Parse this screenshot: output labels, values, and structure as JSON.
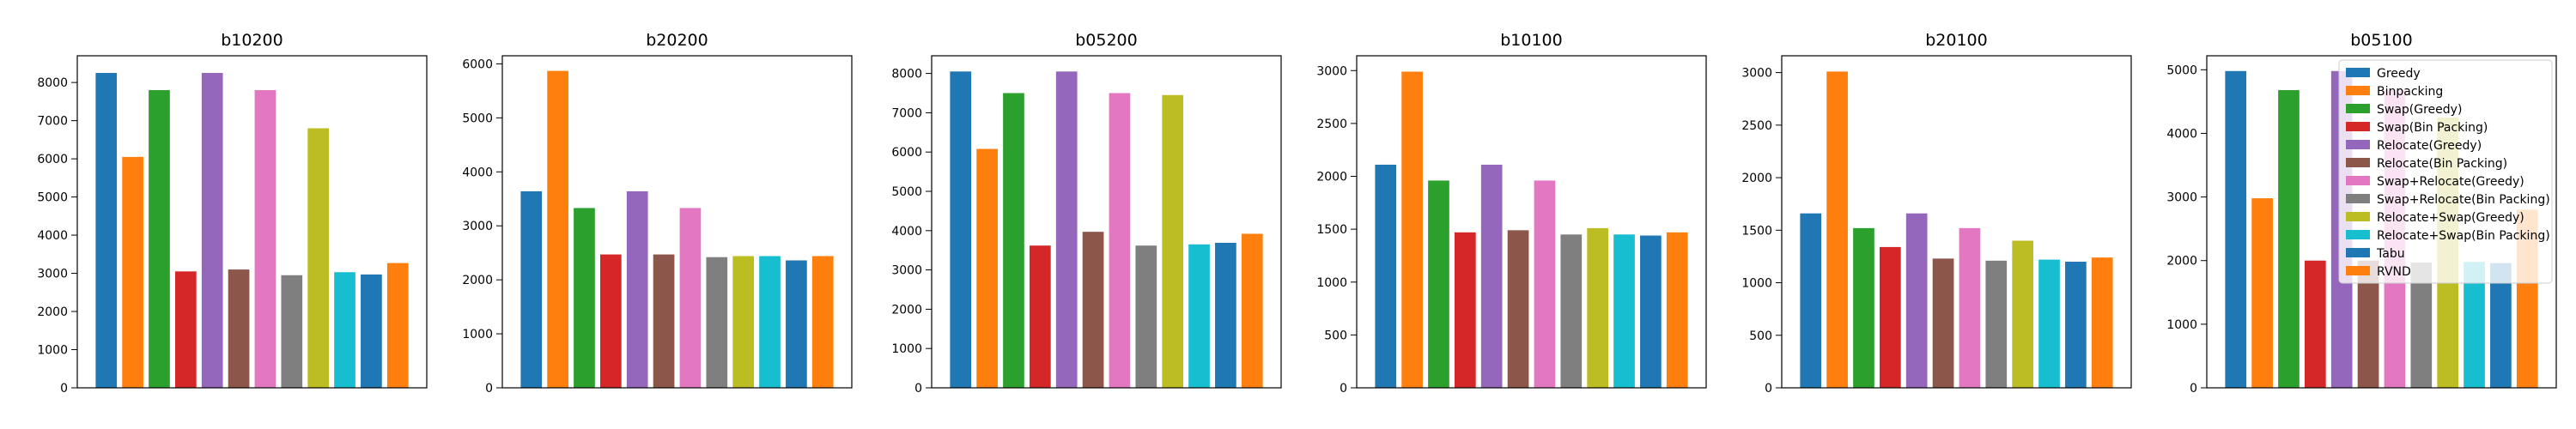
{
  "series_names": [
    "Greedy",
    "Binpacking",
    "Swap(Greedy)",
    "Swap(Bin Packing)",
    "Relocate(Greedy)",
    "Relocate(Bin Packing)",
    "Swap+Relocate(Greedy)",
    "Swap+Relocate(Bin Packing)",
    "Relocate+Swap(Greedy)",
    "Relocate+Swap(Bin Packing)",
    "Tabu",
    "RVND"
  ],
  "colors": [
    "#1f77b4",
    "#ff7f0e",
    "#2ca02c",
    "#d62728",
    "#9467bd",
    "#8c564b",
    "#e377c2",
    "#7f7f7f",
    "#bcbd22",
    "#17becf",
    "#1f77b4",
    "#ff7f0e"
  ],
  "chart_data": [
    {
      "type": "bar",
      "title": "b10200",
      "categories": [
        "Greedy",
        "Binpacking",
        "Swap(Greedy)",
        "Swap(Bin Packing)",
        "Relocate(Greedy)",
        "Relocate(Bin Packing)",
        "Swap+Relocate(Greedy)",
        "Swap+Relocate(Bin Packing)",
        "Relocate+Swap(Greedy)",
        "Relocate+Swap(Bin Packing)",
        "Tabu",
        "RVND"
      ],
      "values": [
        8250,
        6050,
        7800,
        3050,
        8250,
        3100,
        7800,
        2950,
        6800,
        3030,
        2970,
        3270
      ],
      "ylim": [
        0,
        8700
      ],
      "yticks": [
        0,
        1000,
        2000,
        3000,
        4000,
        5000,
        6000,
        7000,
        8000
      ],
      "xlabel": "",
      "ylabel": "",
      "legend": "none"
    },
    {
      "type": "bar",
      "title": "b20200",
      "categories": [
        "Greedy",
        "Binpacking",
        "Swap(Greedy)",
        "Swap(Bin Packing)",
        "Relocate(Greedy)",
        "Relocate(Bin Packing)",
        "Swap+Relocate(Greedy)",
        "Swap+Relocate(Bin Packing)",
        "Relocate+Swap(Greedy)",
        "Relocate+Swap(Bin Packing)",
        "Tabu",
        "RVND"
      ],
      "values": [
        3640,
        5870,
        3330,
        2470,
        3640,
        2470,
        3330,
        2420,
        2440,
        2440,
        2360,
        2440
      ],
      "ylim": [
        0,
        6150
      ],
      "yticks": [
        0,
        1000,
        2000,
        3000,
        4000,
        5000,
        6000
      ],
      "xlabel": "",
      "ylabel": "",
      "legend": "none"
    },
    {
      "type": "bar",
      "title": "b05200",
      "categories": [
        "Greedy",
        "Binpacking",
        "Swap(Greedy)",
        "Swap(Bin Packing)",
        "Relocate(Greedy)",
        "Relocate(Bin Packing)",
        "Swap+Relocate(Greedy)",
        "Swap+Relocate(Bin Packing)",
        "Relocate+Swap(Greedy)",
        "Relocate+Swap(Bin Packing)",
        "Tabu",
        "RVND"
      ],
      "values": [
        8050,
        6080,
        7500,
        3620,
        8050,
        3970,
        7500,
        3620,
        7450,
        3650,
        3690,
        3920
      ],
      "ylim": [
        0,
        8450
      ],
      "yticks": [
        0,
        1000,
        2000,
        3000,
        4000,
        5000,
        6000,
        7000,
        8000
      ],
      "xlabel": "",
      "ylabel": "",
      "legend": "none"
    },
    {
      "type": "bar",
      "title": "b10100",
      "categories": [
        "Greedy",
        "Binpacking",
        "Swap(Greedy)",
        "Swap(Bin Packing)",
        "Relocate(Greedy)",
        "Relocate(Bin Packing)",
        "Swap+Relocate(Greedy)",
        "Swap+Relocate(Bin Packing)",
        "Relocate+Swap(Greedy)",
        "Relocate+Swap(Bin Packing)",
        "Tabu",
        "RVND"
      ],
      "values": [
        2110,
        2990,
        1960,
        1470,
        2110,
        1490,
        1960,
        1450,
        1510,
        1450,
        1440,
        1470
      ],
      "ylim": [
        0,
        3140
      ],
      "yticks": [
        0,
        500,
        1000,
        1500,
        2000,
        2500,
        3000
      ],
      "xlabel": "",
      "ylabel": "",
      "legend": "none"
    },
    {
      "type": "bar",
      "title": "b20100",
      "categories": [
        "Greedy",
        "Binpacking",
        "Swap(Greedy)",
        "Swap(Bin Packing)",
        "Relocate(Greedy)",
        "Relocate(Bin Packing)",
        "Swap+Relocate(Greedy)",
        "Swap+Relocate(Bin Packing)",
        "Relocate+Swap(Greedy)",
        "Relocate+Swap(Bin Packing)",
        "Tabu",
        "RVND"
      ],
      "values": [
        1660,
        3010,
        1520,
        1340,
        1660,
        1230,
        1520,
        1210,
        1400,
        1220,
        1200,
        1240
      ],
      "ylim": [
        0,
        3160
      ],
      "yticks": [
        0,
        500,
        1000,
        1500,
        2000,
        2500,
        3000
      ],
      "xlabel": "",
      "ylabel": "",
      "legend": "none"
    },
    {
      "type": "bar",
      "title": "b05100",
      "categories": [
        "Greedy",
        "Binpacking",
        "Swap(Greedy)",
        "Swap(Bin Packing)",
        "Relocate(Greedy)",
        "Relocate(Bin Packing)",
        "Swap+Relocate(Greedy)",
        "Swap+Relocate(Bin Packing)",
        "Relocate+Swap(Greedy)",
        "Relocate+Swap(Bin Packing)",
        "Tabu",
        "RVND"
      ],
      "values": [
        4980,
        2980,
        4680,
        2000,
        4980,
        2000,
        4680,
        1970,
        4250,
        1980,
        1960,
        2800
      ],
      "ylim": [
        0,
        5220
      ],
      "yticks": [
        0,
        1000,
        2000,
        3000,
        4000,
        5000
      ],
      "xlabel": "",
      "ylabel": "",
      "legend": "upper right"
    }
  ]
}
